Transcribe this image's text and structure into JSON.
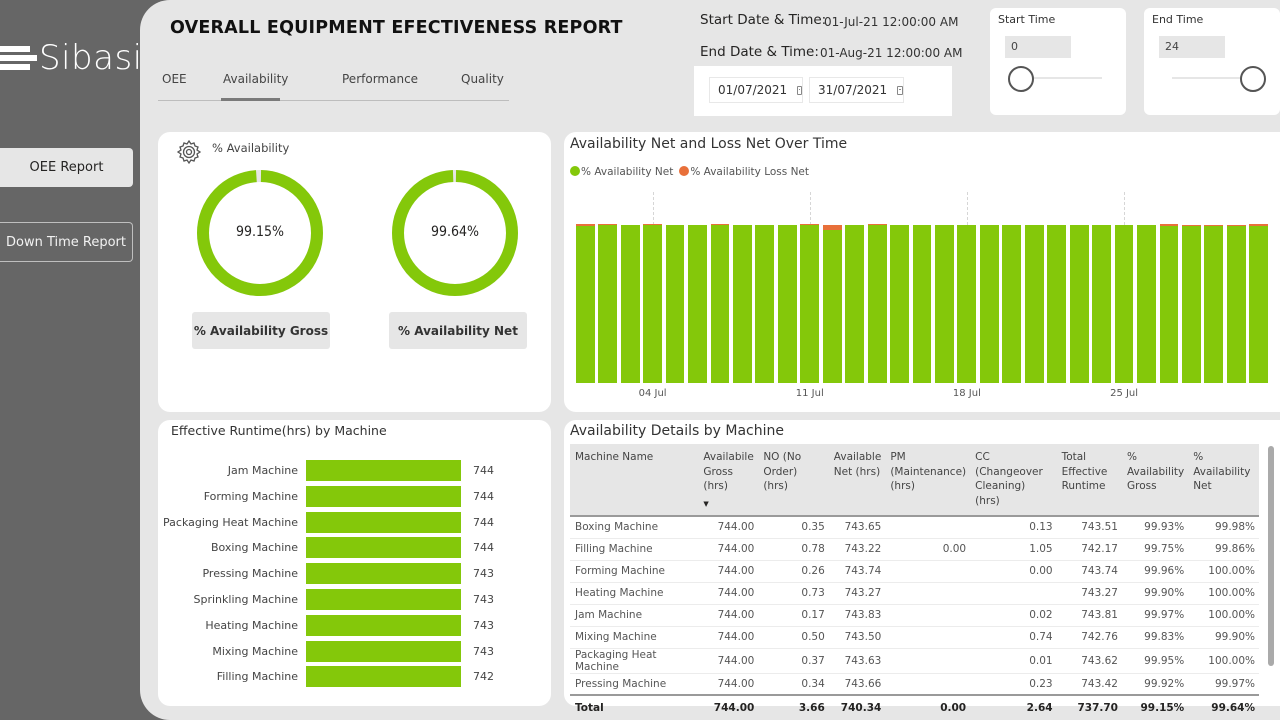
{
  "brand": {
    "name": "Sibasi"
  },
  "sidebar": {
    "buttons": [
      {
        "label": "OEE Report"
      },
      {
        "label": "Down Time Report"
      }
    ]
  },
  "header": {
    "title": "OVERALL EQUIPMENT EFECTIVENESS REPORT",
    "tabs": [
      {
        "label": "OEE",
        "active": false
      },
      {
        "label": "Availability",
        "active": true
      },
      {
        "label": "Performance",
        "active": false
      },
      {
        "label": "Quality",
        "active": false
      }
    ],
    "start_date_label": "Start Date & Time:",
    "start_date_value": "01-Jul-21 12:00:00 AM",
    "end_date_label": "End Date & Time:",
    "end_date_value": "01-Aug-21 12:00:00 AM",
    "date_from": "01/07/2021",
    "date_to": "31/07/2021",
    "start_time": {
      "title": "Start Time",
      "value": "0",
      "slider_fraction": 0
    },
    "end_time": {
      "title": "End Time",
      "value": "24",
      "slider_fraction": 1
    }
  },
  "colors": {
    "accent_green": "#84c80a",
    "loss_orange": "#e8703a",
    "sidebar_bg": "#666666",
    "canvas_bg": "#e6e6e6"
  },
  "availability_card": {
    "title": "% Availability",
    "icon": "gear-icon",
    "gross": {
      "value_text": "99.15%",
      "value": 99.15,
      "label": "% Availability Gross"
    },
    "net": {
      "value_text": "99.64%",
      "value": 99.64,
      "label": "% Availability Net"
    }
  },
  "chart_data": [
    {
      "type": "bar",
      "stacked": true,
      "title": "Availability Net and Loss Net Over Time",
      "legend": [
        "% Availability Net",
        "% Availability Loss Net"
      ],
      "legend_position": "top-left",
      "x_ticks": [
        "04 Jul",
        "11 Jul",
        "18 Jul",
        "25 Jul"
      ],
      "categories": [
        "01 Jul",
        "02 Jul",
        "03 Jul",
        "04 Jul",
        "05 Jul",
        "06 Jul",
        "07 Jul",
        "08 Jul",
        "09 Jul",
        "10 Jul",
        "11 Jul",
        "12 Jul",
        "13 Jul",
        "14 Jul",
        "15 Jul",
        "16 Jul",
        "17 Jul",
        "18 Jul",
        "19 Jul",
        "20 Jul",
        "21 Jul",
        "22 Jul",
        "23 Jul",
        "24 Jul",
        "25 Jul",
        "26 Jul",
        "27 Jul",
        "28 Jul",
        "29 Jul",
        "30 Jul",
        "31 Jul"
      ],
      "series": [
        {
          "name": "% Availability Net",
          "values": [
            99.6,
            99.8,
            100,
            99.7,
            100,
            100,
            99.8,
            100,
            100,
            100,
            99.8,
            97,
            100,
            99.8,
            100,
            100,
            100,
            100,
            100,
            100,
            100,
            100,
            100,
            100,
            100,
            100,
            99.6,
            99.5,
            99.3,
            99.5,
            99.6
          ]
        },
        {
          "name": "% Availability Loss Net",
          "values": [
            0.4,
            0.2,
            0,
            0.3,
            0,
            0,
            0.2,
            0,
            0,
            0,
            0.2,
            3,
            0,
            0.2,
            0,
            0,
            0,
            0,
            0,
            0,
            0,
            0,
            0,
            0,
            0,
            0,
            0.4,
            0.5,
            0.7,
            0.5,
            0.4
          ]
        }
      ],
      "ylim": [
        0,
        100
      ]
    },
    {
      "type": "bar",
      "orientation": "horizontal",
      "title": "Effective Runtime(hrs) by Machine",
      "categories": [
        "Jam Machine",
        "Forming Machine",
        "Packaging Heat Machine",
        "Boxing Machine",
        "Pressing Machine",
        "Sprinkling Machine",
        "Heating Machine",
        "Mixing Machine",
        "Filling Machine"
      ],
      "values": [
        744,
        744,
        744,
        744,
        743,
        743,
        743,
        743,
        742
      ],
      "xlim": [
        0,
        744
      ]
    }
  ],
  "details_table": {
    "title": "Availability Details by Machine",
    "columns": [
      "Machine Name",
      "Availabile Gross (hrs)",
      "NO (No Order) (hrs)",
      "Available Net (hrs)",
      "PM (Maintenance) (hrs)",
      "CC (Changeover Cleaning) (hrs)",
      "Total Effective Runtime",
      "% Availability Gross",
      "% Availability Net"
    ],
    "sorted_column": 1,
    "rows": [
      [
        "Boxing Machine",
        "744.00",
        "0.35",
        "743.65",
        "",
        "0.13",
        "743.51",
        "99.93%",
        "99.98%"
      ],
      [
        "Filling Machine",
        "744.00",
        "0.78",
        "743.22",
        "0.00",
        "1.05",
        "742.17",
        "99.75%",
        "99.86%"
      ],
      [
        "Forming Machine",
        "744.00",
        "0.26",
        "743.74",
        "",
        "0.00",
        "743.74",
        "99.96%",
        "100.00%"
      ],
      [
        "Heating Machine",
        "744.00",
        "0.73",
        "743.27",
        "",
        "",
        "743.27",
        "99.90%",
        "100.00%"
      ],
      [
        "Jam Machine",
        "744.00",
        "0.17",
        "743.83",
        "",
        "0.02",
        "743.81",
        "99.97%",
        "100.00%"
      ],
      [
        "Mixing Machine",
        "744.00",
        "0.50",
        "743.50",
        "",
        "0.74",
        "742.76",
        "99.83%",
        "99.90%"
      ],
      [
        "Packaging Heat Machine",
        "744.00",
        "0.37",
        "743.63",
        "",
        "0.01",
        "743.62",
        "99.95%",
        "100.00%"
      ],
      [
        "Pressing Machine",
        "744.00",
        "0.34",
        "743.66",
        "",
        "0.23",
        "743.42",
        "99.92%",
        "99.97%"
      ]
    ],
    "total": [
      "Total",
      "744.00",
      "3.66",
      "740.34",
      "0.00",
      "2.64",
      "737.70",
      "99.15%",
      "99.64%"
    ]
  }
}
